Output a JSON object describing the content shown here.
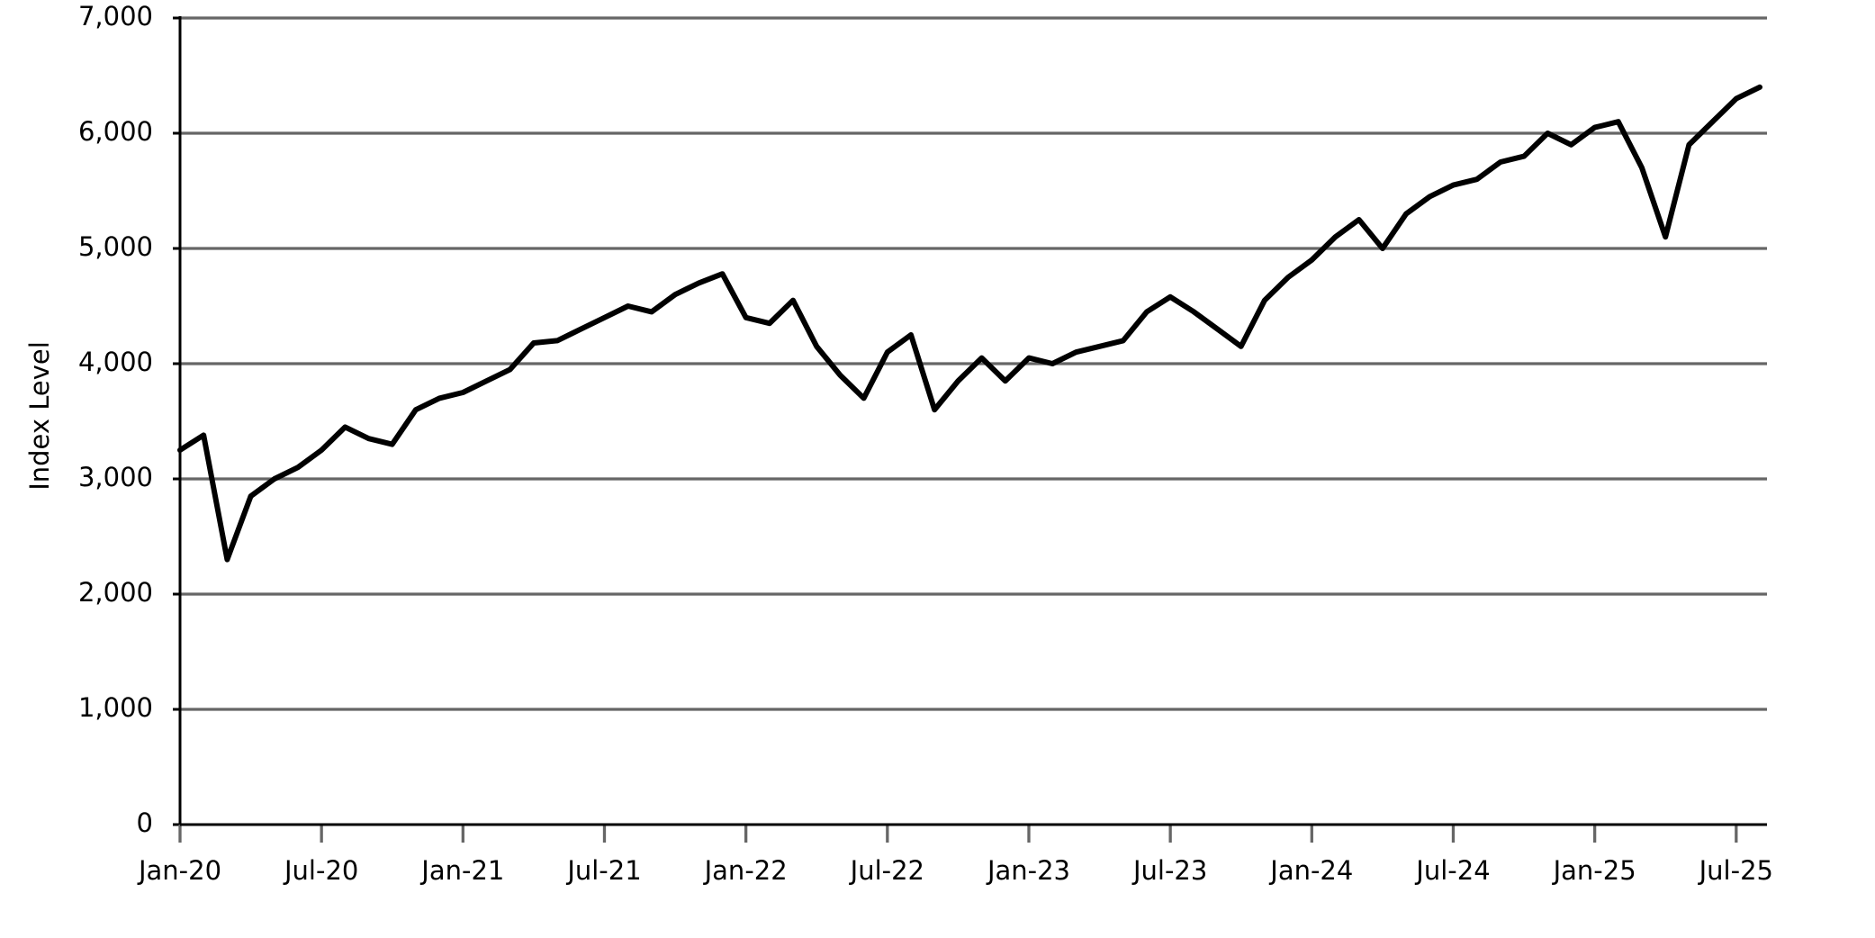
{
  "chart_data": {
    "type": "line",
    "y_label": "Index Level",
    "x": [
      "2020-01",
      "2020-02",
      "2020-03",
      "2020-04",
      "2020-05",
      "2020-06",
      "2020-07",
      "2020-08",
      "2020-09",
      "2020-10",
      "2020-11",
      "2020-12",
      "2021-01",
      "2021-02",
      "2021-03",
      "2021-04",
      "2021-05",
      "2021-06",
      "2021-07",
      "2021-08",
      "2021-09",
      "2021-10",
      "2021-11",
      "2021-12",
      "2022-01",
      "2022-02",
      "2022-03",
      "2022-04",
      "2022-05",
      "2022-06",
      "2022-07",
      "2022-08",
      "2022-09",
      "2022-10",
      "2022-11",
      "2022-12",
      "2023-01",
      "2023-02",
      "2023-03",
      "2023-04",
      "2023-05",
      "2023-06",
      "2023-07",
      "2023-08",
      "2023-09",
      "2023-10",
      "2023-11",
      "2023-12",
      "2024-01",
      "2024-02",
      "2024-03",
      "2024-04",
      "2024-05",
      "2024-06",
      "2024-07",
      "2024-08",
      "2024-09",
      "2024-10",
      "2024-11",
      "2024-12",
      "2025-01",
      "2025-02",
      "2025-03",
      "2025-04",
      "2025-05",
      "2025-06",
      "2025-07",
      "2025-08"
    ],
    "series": [
      {
        "name": "Index Level",
        "color": "#000000",
        "values": [
          3250,
          3380,
          2300,
          2850,
          3000,
          3100,
          3250,
          3450,
          3350,
          3300,
          3600,
          3700,
          3750,
          3850,
          3950,
          4180,
          4200,
          4300,
          4400,
          4500,
          4450,
          4600,
          4700,
          4780,
          4400,
          4350,
          4550,
          4150,
          3900,
          3700,
          4100,
          4250,
          3600,
          3850,
          4050,
          3850,
          4050,
          4000,
          4100,
          4150,
          4200,
          4450,
          4580,
          4450,
          4300,
          4150,
          4550,
          4750,
          4900,
          5100,
          5250,
          5000,
          5300,
          5450,
          5550,
          5600,
          5750,
          5800,
          6000,
          5900,
          6050,
          6100,
          5700,
          5100,
          5900,
          6100,
          6300,
          6400
        ]
      }
    ],
    "xlim": [
      "2020-01",
      "2025-08"
    ],
    "xticks": [
      {
        "value": "2020-01",
        "label": "Jan-20"
      },
      {
        "value": "2020-07",
        "label": "Jul-20"
      },
      {
        "value": "2021-01",
        "label": "Jan-21"
      },
      {
        "value": "2021-07",
        "label": "Jul-21"
      },
      {
        "value": "2022-01",
        "label": "Jan-22"
      },
      {
        "value": "2022-07",
        "label": "Jul-22"
      },
      {
        "value": "2023-01",
        "label": "Jan-23"
      },
      {
        "value": "2023-07",
        "label": "Jul-23"
      },
      {
        "value": "2024-01",
        "label": "Jan-24"
      },
      {
        "value": "2024-07",
        "label": "Jul-24"
      },
      {
        "value": "2025-01",
        "label": "Jan-25"
      },
      {
        "value": "2025-07",
        "label": "Jul-25"
      }
    ],
    "ylim": [
      0,
      7000
    ],
    "yticks": [
      0,
      {
        "value": 1000,
        "label": "1,000"
      },
      {
        "value": 2000,
        "label": "2,000"
      },
      {
        "value": 3000,
        "label": "3,000"
      },
      {
        "value": 4000,
        "label": "4,000"
      },
      {
        "value": 5000,
        "label": "5,000"
      },
      {
        "value": 6000,
        "label": "6,000"
      },
      {
        "value": 7000,
        "label": "7,000"
      }
    ],
    "grid": true
  }
}
